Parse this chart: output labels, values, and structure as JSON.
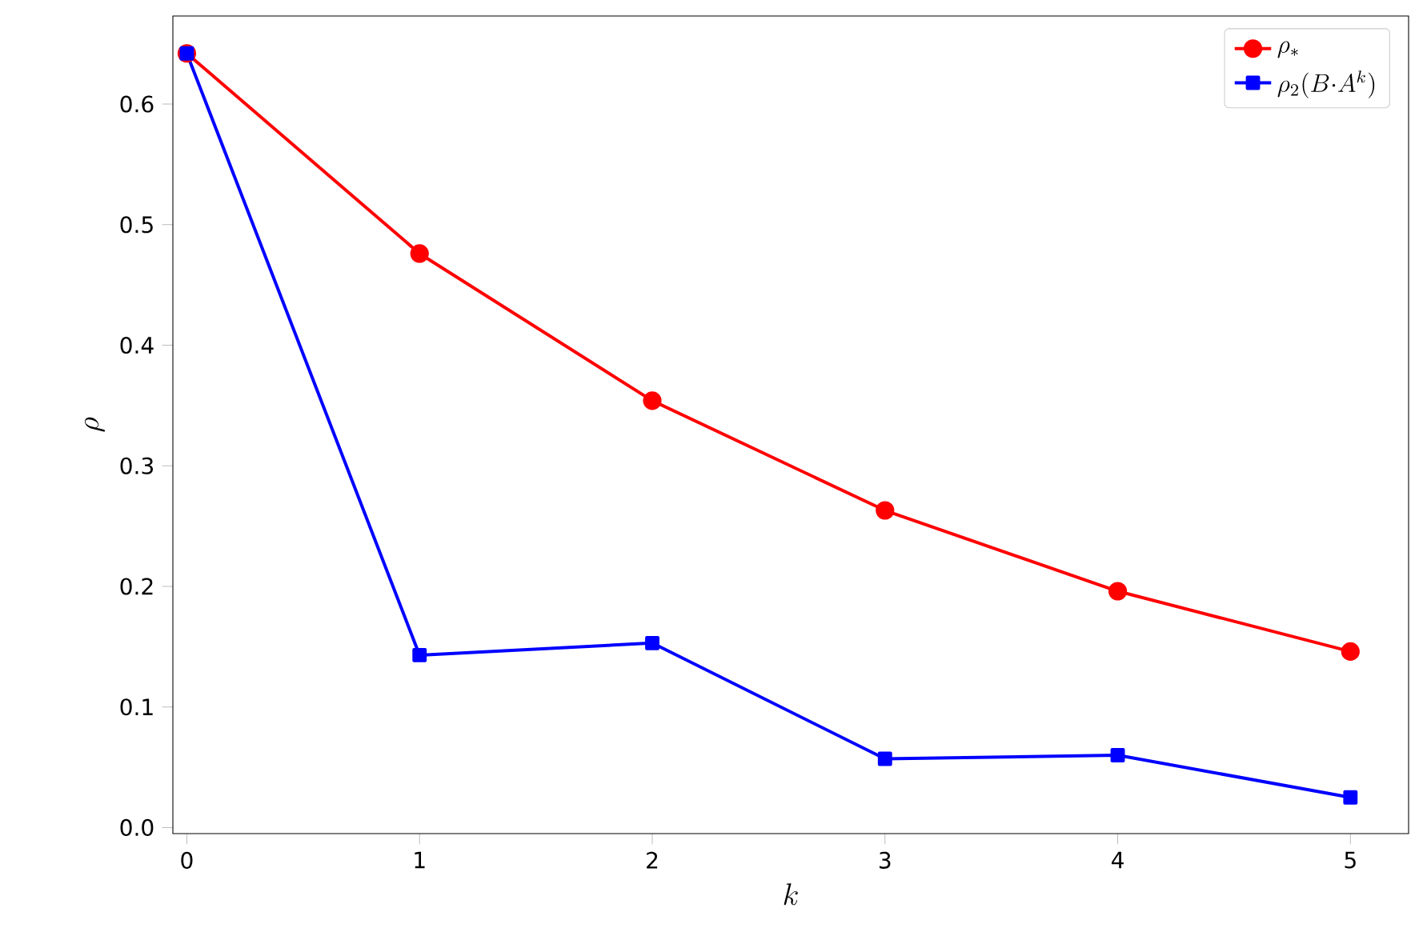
{
  "chart_data": {
    "type": "line",
    "xlabel": "k",
    "ylabel": "\\rho",
    "x": [
      0,
      1,
      2,
      3,
      4,
      5
    ],
    "series": [
      {
        "name": "\\rho_{*}",
        "color": "#ff0000",
        "marker": "circle",
        "values": [
          0.642,
          0.476,
          0.354,
          0.263,
          0.196,
          0.146
        ]
      },
      {
        "name": "\\rho_{2}(B{\\cdot}A^{k})",
        "color": "#0000ff",
        "marker": "square",
        "values": [
          0.642,
          0.143,
          0.153,
          0.057,
          0.06,
          0.025
        ]
      }
    ],
    "xlim": [
      -0.06,
      5.25
    ],
    "ylim": [
      -0.005,
      0.673
    ],
    "xticks": [
      0,
      1,
      2,
      3,
      4,
      5
    ],
    "yticks": [
      {
        "value": 0,
        "label": "0.0"
      },
      0.1,
      0.2,
      0.3,
      0.4,
      0.5,
      0.6
    ],
    "legend": "top right",
    "grid": false,
    "line_style": "solid"
  }
}
